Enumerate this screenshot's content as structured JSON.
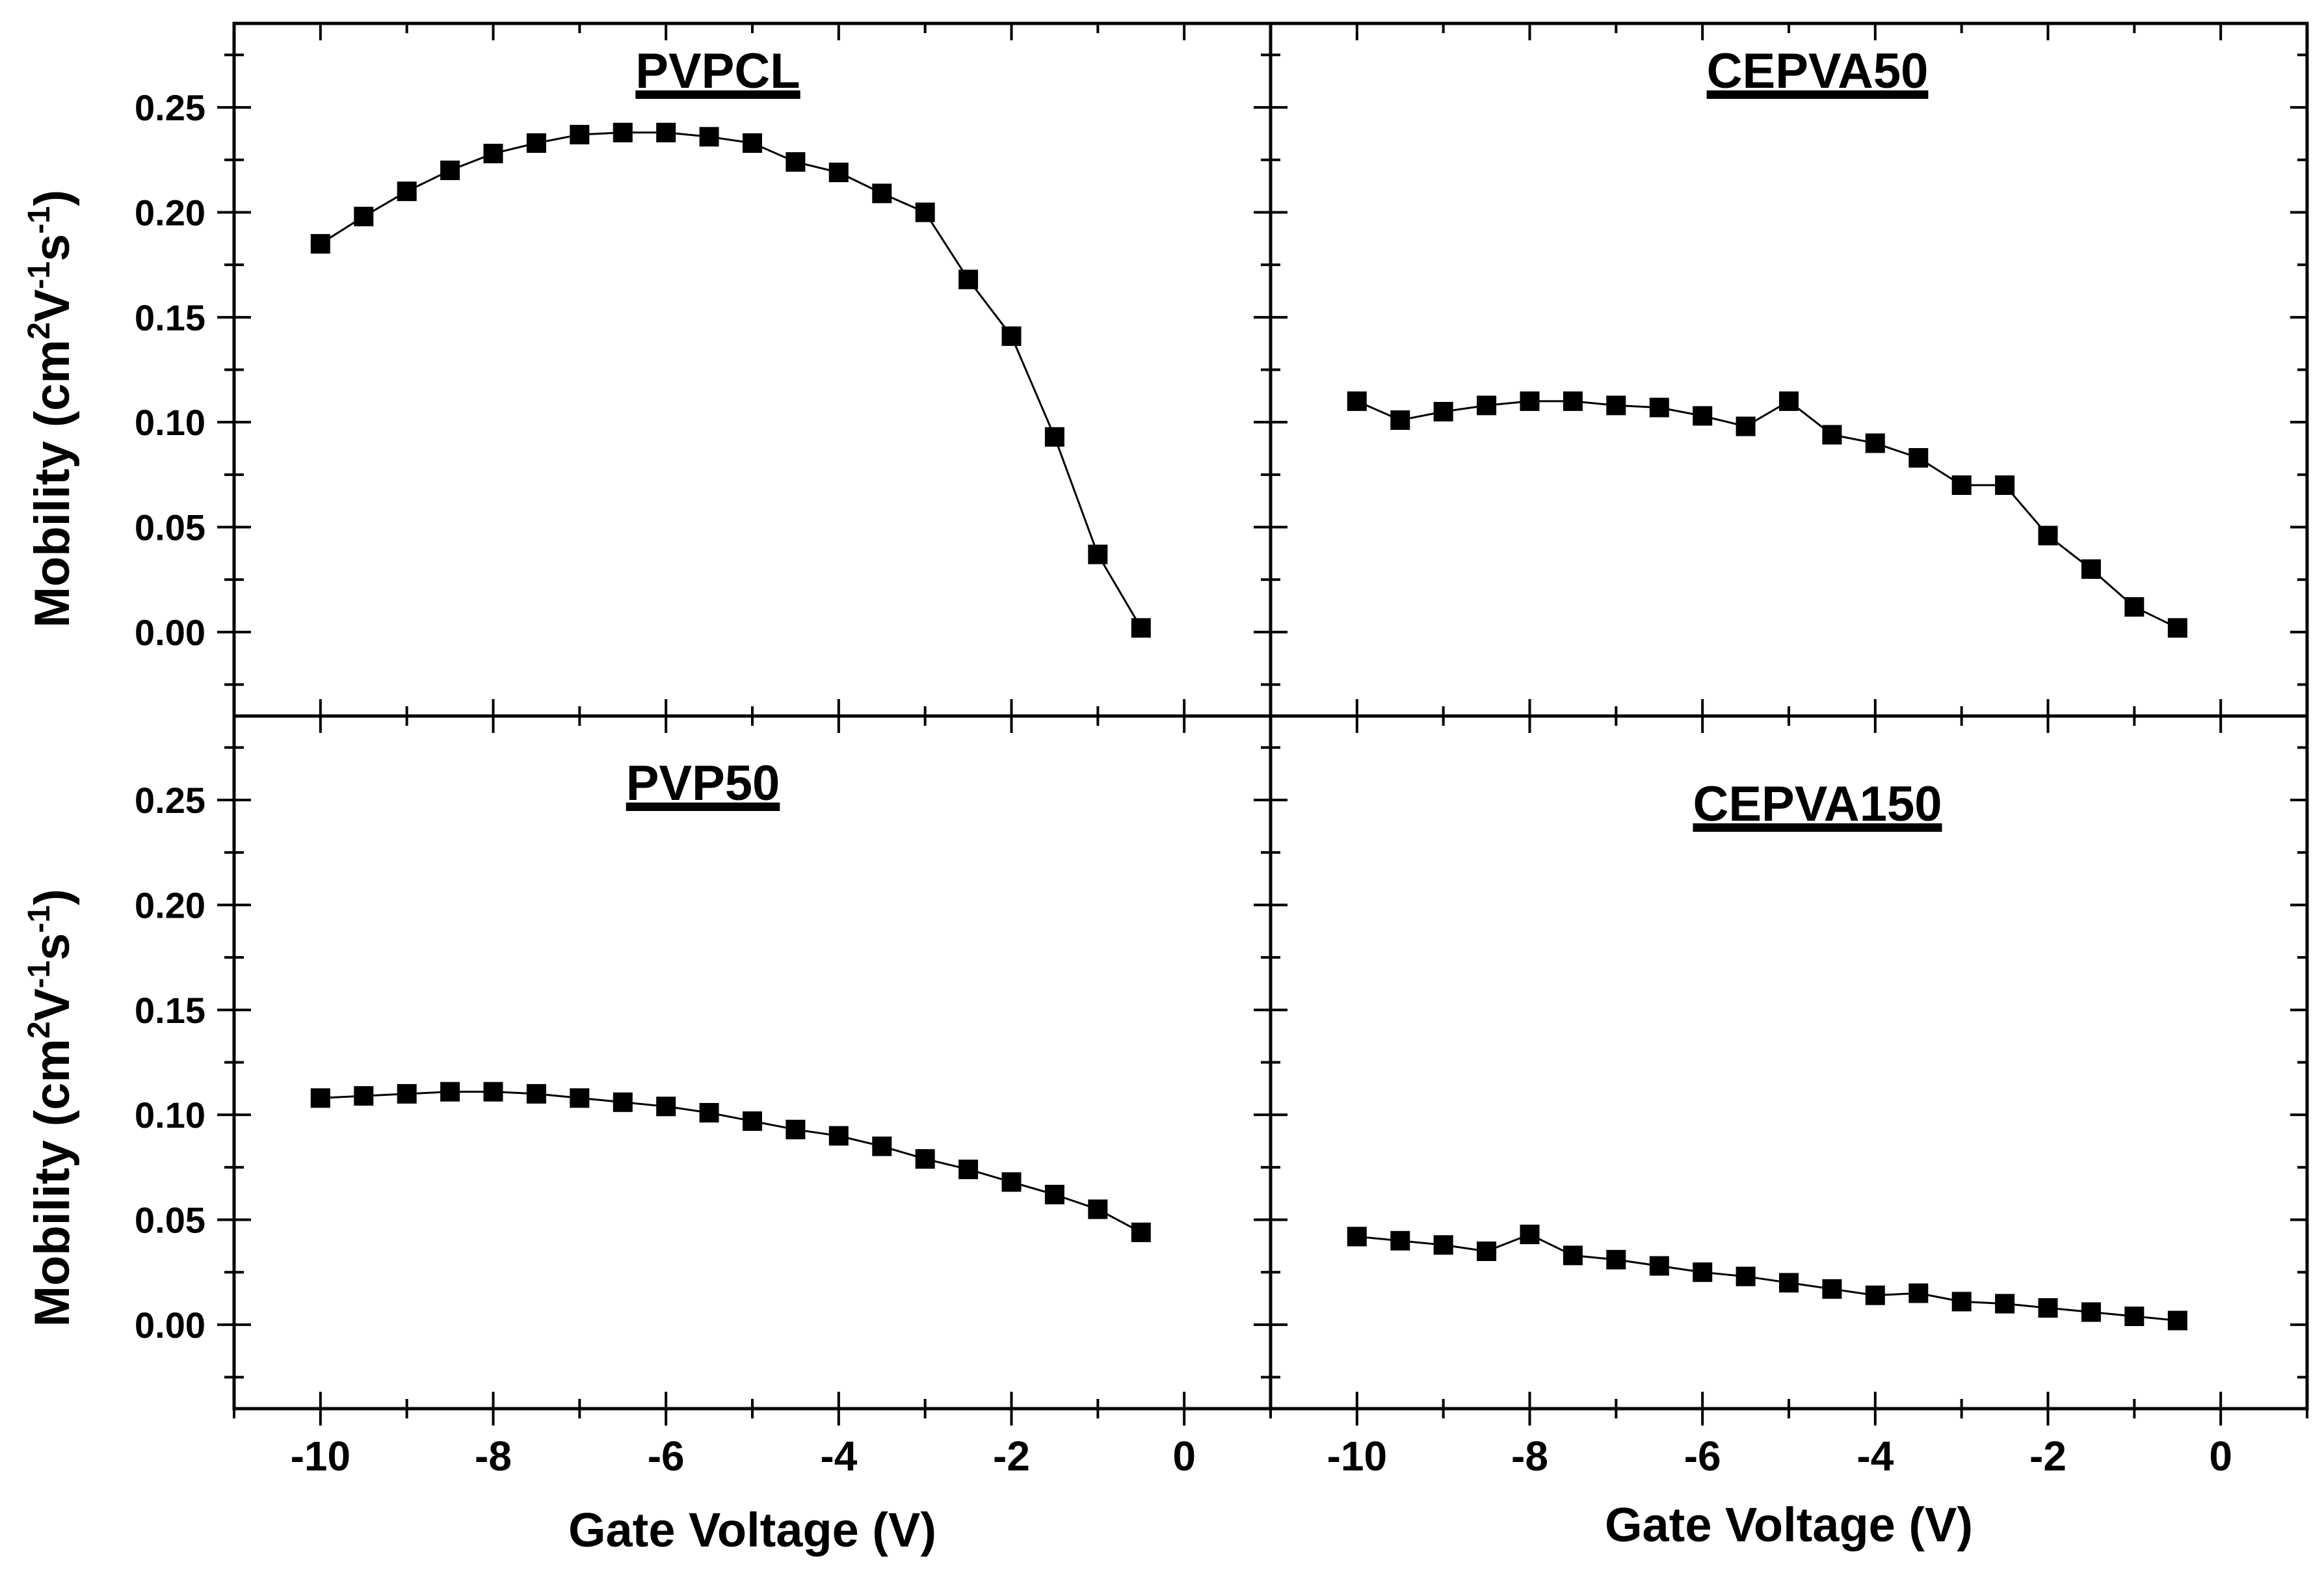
{
  "chart_data": {
    "type": "scatter",
    "layout": "2x2 panel grid with shared axes",
    "xlabel": "Gate Voltage (V)",
    "ylabel_parts": [
      "Mobility (cm",
      "2",
      "V",
      "-1",
      "s",
      "-1",
      ")"
    ],
    "xlim": [
      -11,
      1
    ],
    "ylim": [
      -0.04,
      0.29
    ],
    "x_ticks": [
      -10,
      -8,
      -6,
      -4,
      -2,
      0
    ],
    "x_tick_labels": [
      "-10",
      "-8",
      "-6",
      "-4",
      "-2",
      "0"
    ],
    "y_ticks": [
      0.0,
      0.05,
      0.1,
      0.15,
      0.2,
      0.25
    ],
    "y_tick_labels": [
      "0.00",
      "0.05",
      "0.10",
      "0.15",
      "0.20",
      "0.25"
    ],
    "marker": "square",
    "colors": {
      "marker": "#000000",
      "line": "#000000",
      "axes": "#000000",
      "background": "#ffffff"
    },
    "x": [
      -10,
      -9.5,
      -9,
      -8.5,
      -8,
      -7.5,
      -7,
      -6.5,
      -6,
      -5.5,
      -5,
      -4.5,
      -4,
      -3.5,
      -3,
      -2.5,
      -2,
      -1.5,
      -1,
      -0.5
    ],
    "panels": [
      {
        "title": "PVPCL",
        "position": "top-left",
        "values": [
          0.185,
          0.198,
          0.21,
          0.22,
          0.228,
          0.233,
          0.237,
          0.238,
          0.238,
          0.236,
          0.233,
          0.224,
          0.219,
          0.209,
          0.2,
          0.168,
          0.141,
          0.093,
          0.037,
          0.002
        ]
      },
      {
        "title": "CEPVA50",
        "position": "top-right",
        "values": [
          0.11,
          0.101,
          0.105,
          0.108,
          0.11,
          0.11,
          0.108,
          0.107,
          0.103,
          0.098,
          0.11,
          0.094,
          0.09,
          0.083,
          0.07,
          0.07,
          0.046,
          0.03,
          0.012,
          0.002
        ]
      },
      {
        "title": "PVP50",
        "position": "bottom-left",
        "values": [
          0.108,
          0.109,
          0.11,
          0.111,
          0.111,
          0.11,
          0.108,
          0.106,
          0.104,
          0.101,
          0.097,
          0.093,
          0.09,
          0.085,
          0.079,
          0.074,
          0.068,
          0.062,
          0.055,
          0.044
        ]
      },
      {
        "title": "CEPVA150",
        "position": "bottom-right",
        "values": [
          0.042,
          0.04,
          0.038,
          0.035,
          0.043,
          0.033,
          0.031,
          0.028,
          0.025,
          0.023,
          0.02,
          0.017,
          0.014,
          0.015,
          0.011,
          0.01,
          0.008,
          0.006,
          0.004,
          0.002
        ]
      }
    ]
  }
}
